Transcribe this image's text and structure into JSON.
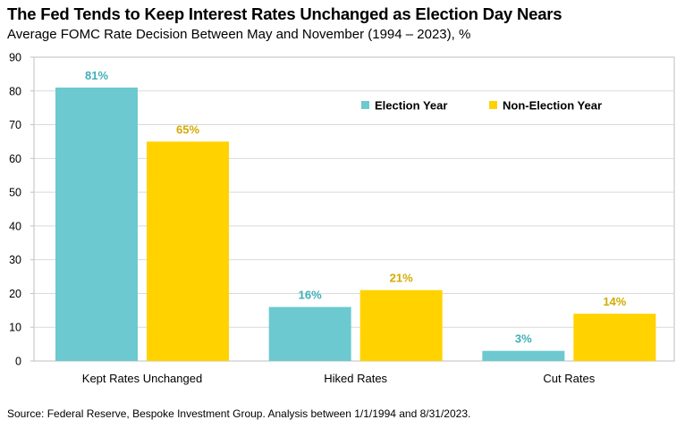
{
  "header": {
    "title": "The Fed Tends to Keep Interest Rates Unchanged as Election Day Nears",
    "subtitle": "Average FOMC Rate Decision Between May and November (1994 – 2023), %"
  },
  "footer": {
    "source": "Source: Federal Reserve, Bespoke Investment Group. Analysis between 1/1/1994 and 8/31/2023."
  },
  "chart_data": {
    "type": "bar",
    "title": "The Fed Tends to Keep Interest Rates Unchanged as Election Day Nears",
    "subtitle": "Average FOMC Rate Decision Between May and November (1994 – 2023), %",
    "categories": [
      "Kept Rates Unchanged",
      "Hiked Rates",
      "Cut Rates"
    ],
    "series": [
      {
        "name": "Election Year",
        "values": [
          81,
          16,
          3
        ],
        "labels": [
          "81%",
          "16%",
          "3%"
        ],
        "color": "#6cc9d0",
        "label_color": "#3fb0b8"
      },
      {
        "name": "Non-Election Year",
        "values": [
          65,
          21,
          14
        ],
        "labels": [
          "65%",
          "21%",
          "14%"
        ],
        "color": "#ffd200",
        "label_color": "#d4aa00"
      }
    ],
    "ylim": [
      0,
      90
    ],
    "yticks": [
      0,
      10,
      20,
      30,
      40,
      50,
      60,
      70,
      80,
      90
    ],
    "xlabel": "",
    "ylabel": "",
    "grid": true,
    "legend_position": "top-right"
  }
}
